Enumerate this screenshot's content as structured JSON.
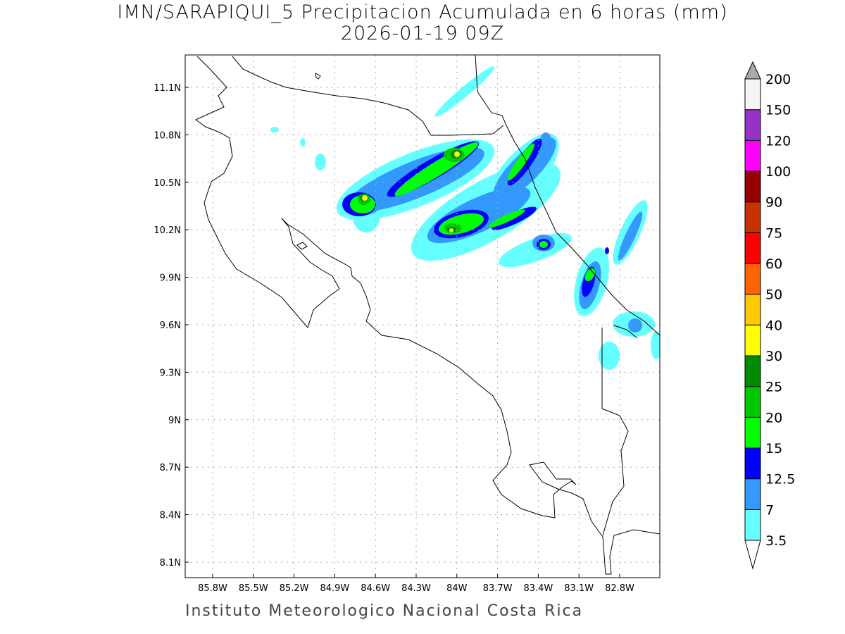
{
  "title": {
    "line1": "IMN/SARAPIQUI_5 Precipitacion Acumulada en 6 horas (mm)",
    "line2": "2026-01-19 09Z"
  },
  "footer": "Instituto Meteorologico Nacional Costa Rica",
  "map": {
    "lon_range": [
      -86.0,
      -82.5
    ],
    "lat_range": [
      8.0,
      11.3
    ],
    "grid": true,
    "lon_ticks": [
      "85.8W",
      "85.5W",
      "85.2W",
      "84.9W",
      "84.6W",
      "84.3W",
      "84W",
      "83.7W",
      "83.4W",
      "83.1W",
      "82.8W"
    ],
    "lat_ticks": [
      "11.1N",
      "10.8N",
      "10.5N",
      "10.2N",
      "9.9N",
      "9.6N",
      "9.3N",
      "9N",
      "8.7N",
      "8.4N",
      "8.1N"
    ]
  },
  "colorbar": {
    "placement": "right",
    "labels": [
      "3.5",
      "7",
      "12.5",
      "15",
      "20",
      "25",
      "30",
      "40",
      "50",
      "60",
      "75",
      "90",
      "100",
      "120",
      "150",
      "200"
    ],
    "colors": [
      "#66ffff",
      "#3399ff",
      "#0000ff",
      "#00ff00",
      "#00c800",
      "#008c00",
      "#ffff00",
      "#ffc800",
      "#ff6400",
      "#ff0000",
      "#c83200",
      "#960000",
      "#ff00ff",
      "#9632c8",
      "#f5f5f5"
    ],
    "over_color": "#aaaaaa",
    "under_color": "#ffffff"
  }
}
